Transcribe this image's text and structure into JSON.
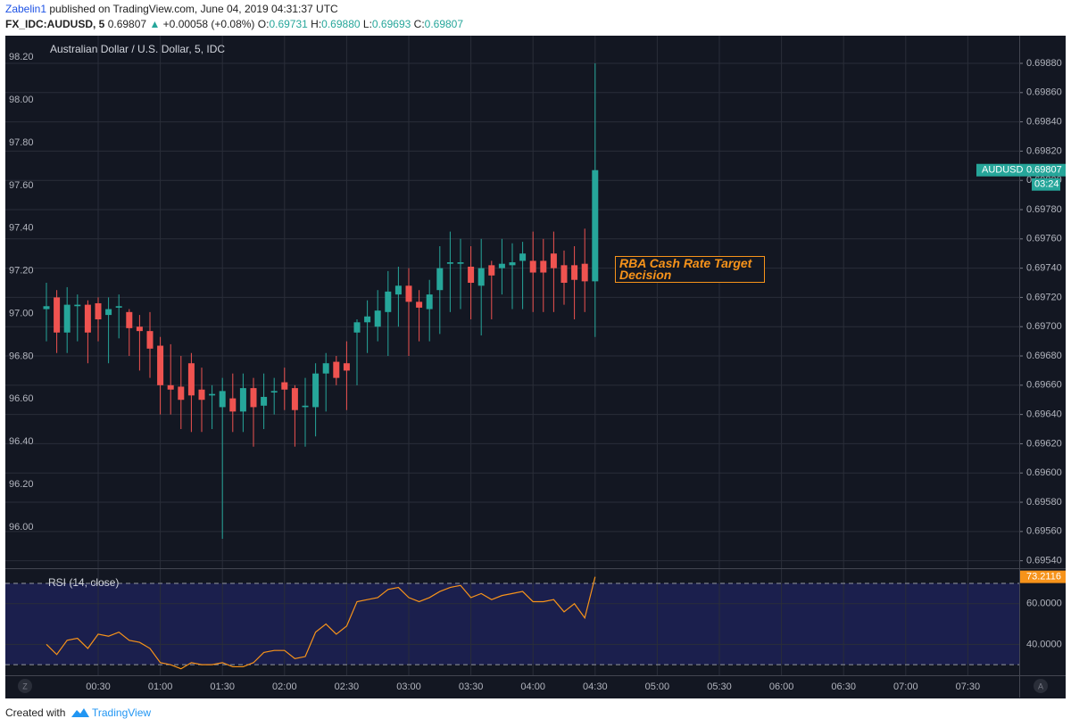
{
  "header": {
    "author": "Zabelin1",
    "published": "published on TradingView.com, June 04, 2019 04:31:37 UTC",
    "symbol": "FX_IDC:AUDUSD, 5",
    "last": "0.69807",
    "change": "+0.00058 (+0.08%)",
    "ohlc": [
      {
        "label": "O:",
        "value": "0.69731"
      },
      {
        "label": "H:",
        "value": "0.69880"
      },
      {
        "label": "L:",
        "value": "0.69693"
      },
      {
        "label": "C:",
        "value": "0.69807"
      }
    ]
  },
  "footer": {
    "created": "Created with",
    "brand": "TradingView"
  },
  "scale_buttons": [
    "Z",
    "A"
  ],
  "chart_data": [
    {
      "type": "candlestick",
      "title": "Australian Dollar / U.S. Dollar, 5, IDC",
      "x": [
        "00:05",
        "00:10",
        "00:15",
        "00:20",
        "00:25",
        "00:30",
        "00:35",
        "00:40",
        "00:45",
        "00:50",
        "00:55",
        "01:00",
        "01:05",
        "01:10",
        "01:15",
        "01:20",
        "01:25",
        "01:30",
        "01:35",
        "01:40",
        "01:45",
        "01:50",
        "01:55",
        "02:00",
        "02:05",
        "02:10",
        "02:15",
        "02:20",
        "02:25",
        "02:30",
        "02:35",
        "02:40",
        "02:45",
        "02:50",
        "02:55",
        "03:00",
        "03:05",
        "03:10",
        "03:15",
        "03:20",
        "03:25",
        "03:30",
        "03:35",
        "03:40",
        "03:45",
        "03:50",
        "03:55",
        "04:00",
        "04:05",
        "04:10",
        "04:15",
        "04:20",
        "04:25",
        "04:30"
      ],
      "open": [
        0.69712,
        0.6972,
        0.69696,
        0.69714,
        0.69715,
        0.69716,
        0.69708,
        0.69713,
        0.6971,
        0.697,
        0.69697,
        0.69687,
        0.6966,
        0.69659,
        0.69675,
        0.69657,
        0.69653,
        0.69645,
        0.69651,
        0.69642,
        0.69658,
        0.69646,
        0.69655,
        0.69662,
        0.69658,
        0.69645,
        0.69645,
        0.69668,
        0.69676,
        0.69675,
        0.69696,
        0.69703,
        0.697,
        0.6971,
        0.69722,
        0.69728,
        0.69717,
        0.69712,
        0.69725,
        0.69743,
        0.69743,
        0.69741,
        0.69728,
        0.69742,
        0.6974,
        0.69742,
        0.69745,
        0.69745,
        0.69745,
        0.6975,
        0.69742,
        0.69742,
        0.69743,
        0.69731
      ],
      "high": [
        0.6973,
        0.69725,
        0.69727,
        0.69722,
        0.69718,
        0.6972,
        0.6972,
        0.69722,
        0.69712,
        0.69708,
        0.6971,
        0.69693,
        0.69688,
        0.6968,
        0.69682,
        0.69672,
        0.6966,
        0.69665,
        0.69668,
        0.69668,
        0.69665,
        0.69668,
        0.69665,
        0.69672,
        0.6966,
        0.69665,
        0.69675,
        0.69682,
        0.6968,
        0.6969,
        0.69705,
        0.69718,
        0.69725,
        0.69738,
        0.69741,
        0.6974,
        0.69725,
        0.69732,
        0.69755,
        0.69765,
        0.6976,
        0.69755,
        0.6976,
        0.69745,
        0.6976,
        0.69757,
        0.69758,
        0.69765,
        0.6976,
        0.69765,
        0.69752,
        0.69755,
        0.69767,
        0.6988
      ],
      "low": [
        0.6969,
        0.69682,
        0.69682,
        0.6969,
        0.69675,
        0.6969,
        0.69675,
        0.69692,
        0.6968,
        0.6967,
        0.69665,
        0.6964,
        0.6964,
        0.6963,
        0.69628,
        0.69628,
        0.6963,
        0.69555,
        0.69628,
        0.69628,
        0.69618,
        0.6963,
        0.6964,
        0.69643,
        0.69618,
        0.69618,
        0.69625,
        0.69642,
        0.6966,
        0.69643,
        0.6966,
        0.69682,
        0.6969,
        0.6968,
        0.697,
        0.6968,
        0.6969,
        0.6969,
        0.69695,
        0.6971,
        0.69712,
        0.69705,
        0.69694,
        0.69705,
        0.69722,
        0.69712,
        0.69712,
        0.6971,
        0.6971,
        0.6971,
        0.69715,
        0.69705,
        0.6971,
        0.69693
      ],
      "close": [
        0.69714,
        0.69696,
        0.69715,
        0.69715,
        0.69696,
        0.69705,
        0.69712,
        0.69714,
        0.69699,
        0.69697,
        0.69685,
        0.6966,
        0.69657,
        0.6965,
        0.69653,
        0.6965,
        0.69654,
        0.69656,
        0.69642,
        0.69658,
        0.69645,
        0.69652,
        0.69656,
        0.69657,
        0.69643,
        0.69646,
        0.69668,
        0.69675,
        0.69665,
        0.6967,
        0.69703,
        0.69707,
        0.69711,
        0.69724,
        0.69728,
        0.69717,
        0.69713,
        0.69722,
        0.6974,
        0.69744,
        0.69744,
        0.6973,
        0.6974,
        0.69735,
        0.69743,
        0.69744,
        0.6975,
        0.69737,
        0.69737,
        0.6974,
        0.6973,
        0.69732,
        0.69731,
        0.69807
      ],
      "axis": "y2",
      "up_color": "#26a69a",
      "down_color": "#ef5350",
      "grid": true,
      "ylim": [
        95.808,
        98.301
      ],
      "yticks": [
        {
          "value": 96,
          "label": "96.00"
        },
        {
          "value": 96.2,
          "label": "96.20"
        },
        {
          "value": 96.4,
          "label": "96.40"
        },
        {
          "value": 96.6,
          "label": "96.60"
        },
        {
          "value": 96.8,
          "label": "96.80"
        },
        {
          "value": 97,
          "label": "97.00"
        },
        {
          "value": 97.2,
          "label": "97.20"
        },
        {
          "value": 97.4,
          "label": "97.40"
        },
        {
          "value": 97.6,
          "label": "97.60"
        },
        {
          "value": 97.8,
          "label": "97.80"
        },
        {
          "value": 98,
          "label": "98.00"
        },
        {
          "value": 98.2,
          "label": "98.20"
        }
      ],
      "y2lim": [
        0.695349,
        0.698989
      ],
      "y2ticks": [
        {
          "value": 0.6954,
          "label": "0.69540"
        },
        {
          "value": 0.6956,
          "label": "0.69560"
        },
        {
          "value": 0.6958,
          "label": "0.69580"
        },
        {
          "value": 0.696,
          "label": "0.69600"
        },
        {
          "value": 0.6962,
          "label": "0.69620"
        },
        {
          "value": 0.6964,
          "label": "0.69640"
        },
        {
          "value": 0.6966,
          "label": "0.69660"
        },
        {
          "value": 0.6968,
          "label": "0.69680"
        },
        {
          "value": 0.697,
          "label": "0.69700"
        },
        {
          "value": 0.6972,
          "label": "0.69720"
        },
        {
          "value": 0.6974,
          "label": "0.69740"
        },
        {
          "value": 0.6976,
          "label": "0.69760"
        },
        {
          "value": 0.6978,
          "label": "0.69780"
        },
        {
          "value": 0.698,
          "label": "0.69800"
        },
        {
          "value": 0.6982,
          "label": "0.69820"
        },
        {
          "value": 0.6984,
          "label": "0.69840"
        },
        {
          "value": 0.6986,
          "label": "0.69860"
        },
        {
          "value": 0.6988,
          "label": "0.69880"
        }
      ],
      "xticks": [
        "00:30",
        "01:00",
        "01:30",
        "02:00",
        "02:30",
        "03:00",
        "03:30",
        "04:00",
        "04:30",
        "05:00",
        "05:30",
        "06:00",
        "06:30",
        "07:00",
        "07:30"
      ],
      "annotation": "RBA Cash Rate Target Decision",
      "symbol_tag": "AUDUSD",
      "countdown": "03:24"
    },
    {
      "type": "line",
      "title": "RSI (14, close)",
      "color": "#f7931a",
      "values": [
        40,
        35,
        42,
        43,
        38,
        45,
        44,
        46,
        42,
        41,
        38,
        31,
        30,
        28,
        31,
        30,
        30,
        31,
        29,
        29,
        31,
        36,
        37,
        37,
        33,
        34,
        46,
        50,
        45,
        49,
        61,
        62,
        63,
        67,
        68,
        63,
        61,
        63,
        66,
        68,
        69,
        63,
        65,
        62,
        64,
        65,
        66,
        61,
        61,
        62,
        56,
        60,
        53,
        73.2116
      ],
      "ylim": [
        24.8,
        77
      ],
      "yticks": [
        {
          "value": 40,
          "label": "40.0000"
        },
        {
          "value": 60,
          "label": "60.0000"
        }
      ],
      "levels": [
        30,
        70
      ]
    }
  ]
}
